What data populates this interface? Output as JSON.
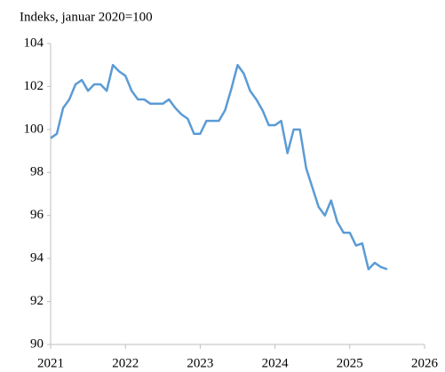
{
  "chart_data": {
    "type": "line",
    "title": "Indeks, januar 2020=100",
    "x": [
      2021,
      2021.083,
      2021.167,
      2021.25,
      2021.333,
      2021.417,
      2021.5,
      2021.583,
      2021.667,
      2021.75,
      2021.833,
      2021.917,
      2022,
      2022.083,
      2022.167,
      2022.25,
      2022.333,
      2022.417,
      2022.5,
      2022.583,
      2022.667,
      2022.75,
      2022.833,
      2022.917,
      2023,
      2023.083,
      2023.167,
      2023.25,
      2023.333,
      2023.417,
      2023.5,
      2023.583,
      2023.667,
      2023.75,
      2023.833,
      2023.917,
      2024,
      2024.083,
      2024.167,
      2024.25,
      2024.333,
      2024.417,
      2024.5,
      2024.583,
      2024.667,
      2024.75,
      2024.833,
      2024.917,
      2025,
      2025.083,
      2025.167,
      2025.25,
      2025.333,
      2025.417,
      2025.5
    ],
    "series": [
      {
        "name": "Indeks",
        "color": "#5b9bd5",
        "values": [
          99.6,
          99.8,
          101.0,
          101.4,
          102.1,
          102.3,
          101.8,
          102.1,
          102.1,
          101.8,
          103.0,
          102.7,
          102.5,
          101.8,
          101.4,
          101.4,
          101.2,
          101.2,
          101.2,
          101.4,
          101.0,
          100.7,
          100.5,
          99.8,
          99.8,
          100.4,
          100.4,
          100.4,
          100.9,
          101.9,
          103.0,
          102.6,
          101.8,
          101.4,
          100.9,
          100.2,
          100.2,
          100.4,
          98.9,
          100.0,
          100.0,
          98.2,
          97.3,
          96.4,
          96.0,
          96.7,
          95.7,
          95.2,
          95.2,
          94.6,
          94.7,
          93.5,
          93.8,
          93.6,
          93.5
        ]
      }
    ],
    "xlim": [
      2021,
      2026
    ],
    "xticks": [
      2021,
      2022,
      2023,
      2024,
      2025,
      2026
    ],
    "ylim": [
      90,
      104
    ],
    "yticks": [
      90,
      92,
      94,
      96,
      98,
      100,
      102,
      104
    ]
  }
}
